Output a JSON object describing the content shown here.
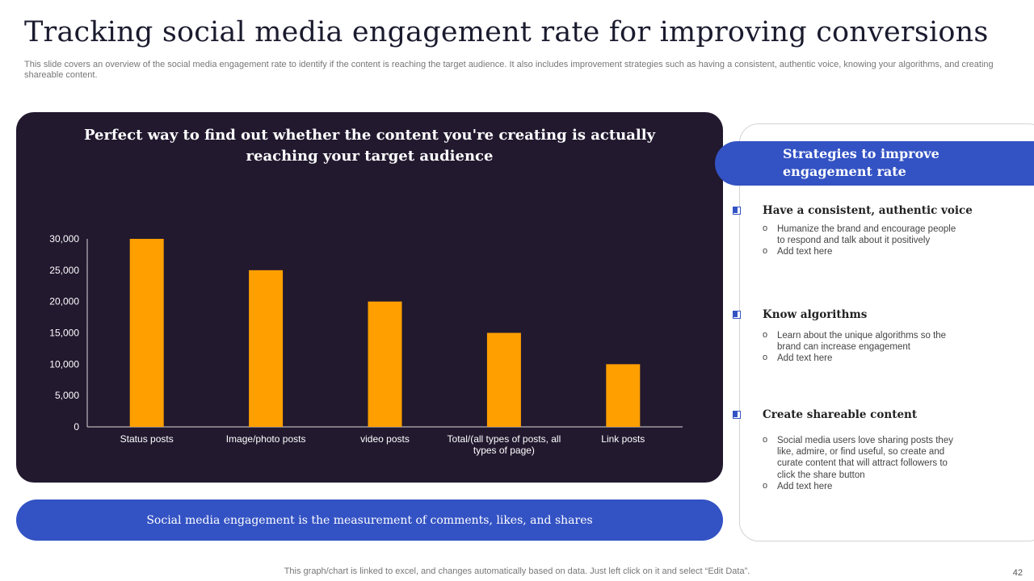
{
  "header": {
    "title": "Tracking social media engagement rate for improving conversions",
    "subtitle": "This slide covers an overview of the social media engagement rate to identify if the content is reaching the target audience. It also includes improvement strategies such as having a consistent, authentic voice, knowing your algorithms, and creating shareable content."
  },
  "chart_panel": {
    "heading": "Perfect way to find out whether the content you're creating is actually reaching your target audience"
  },
  "chart_data": {
    "type": "bar",
    "title": "",
    "categories": [
      "Status posts",
      "Image/photo posts",
      "video posts",
      "Total/(all types of posts, all types of page)",
      "Link posts"
    ],
    "category_lines": [
      [
        "Status posts"
      ],
      [
        "Image/photo posts"
      ],
      [
        "video posts"
      ],
      [
        "Total/(all types of posts, all",
        "types of page)"
      ],
      [
        "Link posts"
      ]
    ],
    "values": [
      30000,
      25000,
      20000,
      15000,
      10000
    ],
    "yticks": [
      "0",
      "5,000",
      "10,000",
      "15,000",
      "20,000",
      "25,000",
      "30,000"
    ],
    "ylim": [
      0,
      30000
    ],
    "xlabel": "",
    "ylabel": "",
    "bar_color": "#ff9f00",
    "axis_color": "#ffffff"
  },
  "banner": {
    "text": "Social media engagement is the measurement of comments, likes, and shares"
  },
  "strategies": {
    "header": "Strategies to improve engagement rate",
    "items": [
      {
        "title": "Have a consistent, authentic voice",
        "bullets": [
          "Humanize the brand and encourage people to respond and talk about it positively",
          "Add text here"
        ]
      },
      {
        "title": "Know algorithms",
        "bullets": [
          "Learn about the unique algorithms so the brand can increase engagement",
          "Add text here"
        ]
      },
      {
        "title": "Create shareable content",
        "bullets": [
          "Social media users love sharing posts they like, admire, or find useful, so create and curate content that will attract followers to click the share button",
          "Add text here"
        ]
      }
    ]
  },
  "footer": {
    "note": "This graph/chart is linked to excel, and changes automatically based on data. Just left click on it and select “Edit Data”.",
    "page_number": "42"
  },
  "colors": {
    "accent": "#3352c4",
    "panel": "#22192f",
    "bar": "#ff9f00"
  }
}
